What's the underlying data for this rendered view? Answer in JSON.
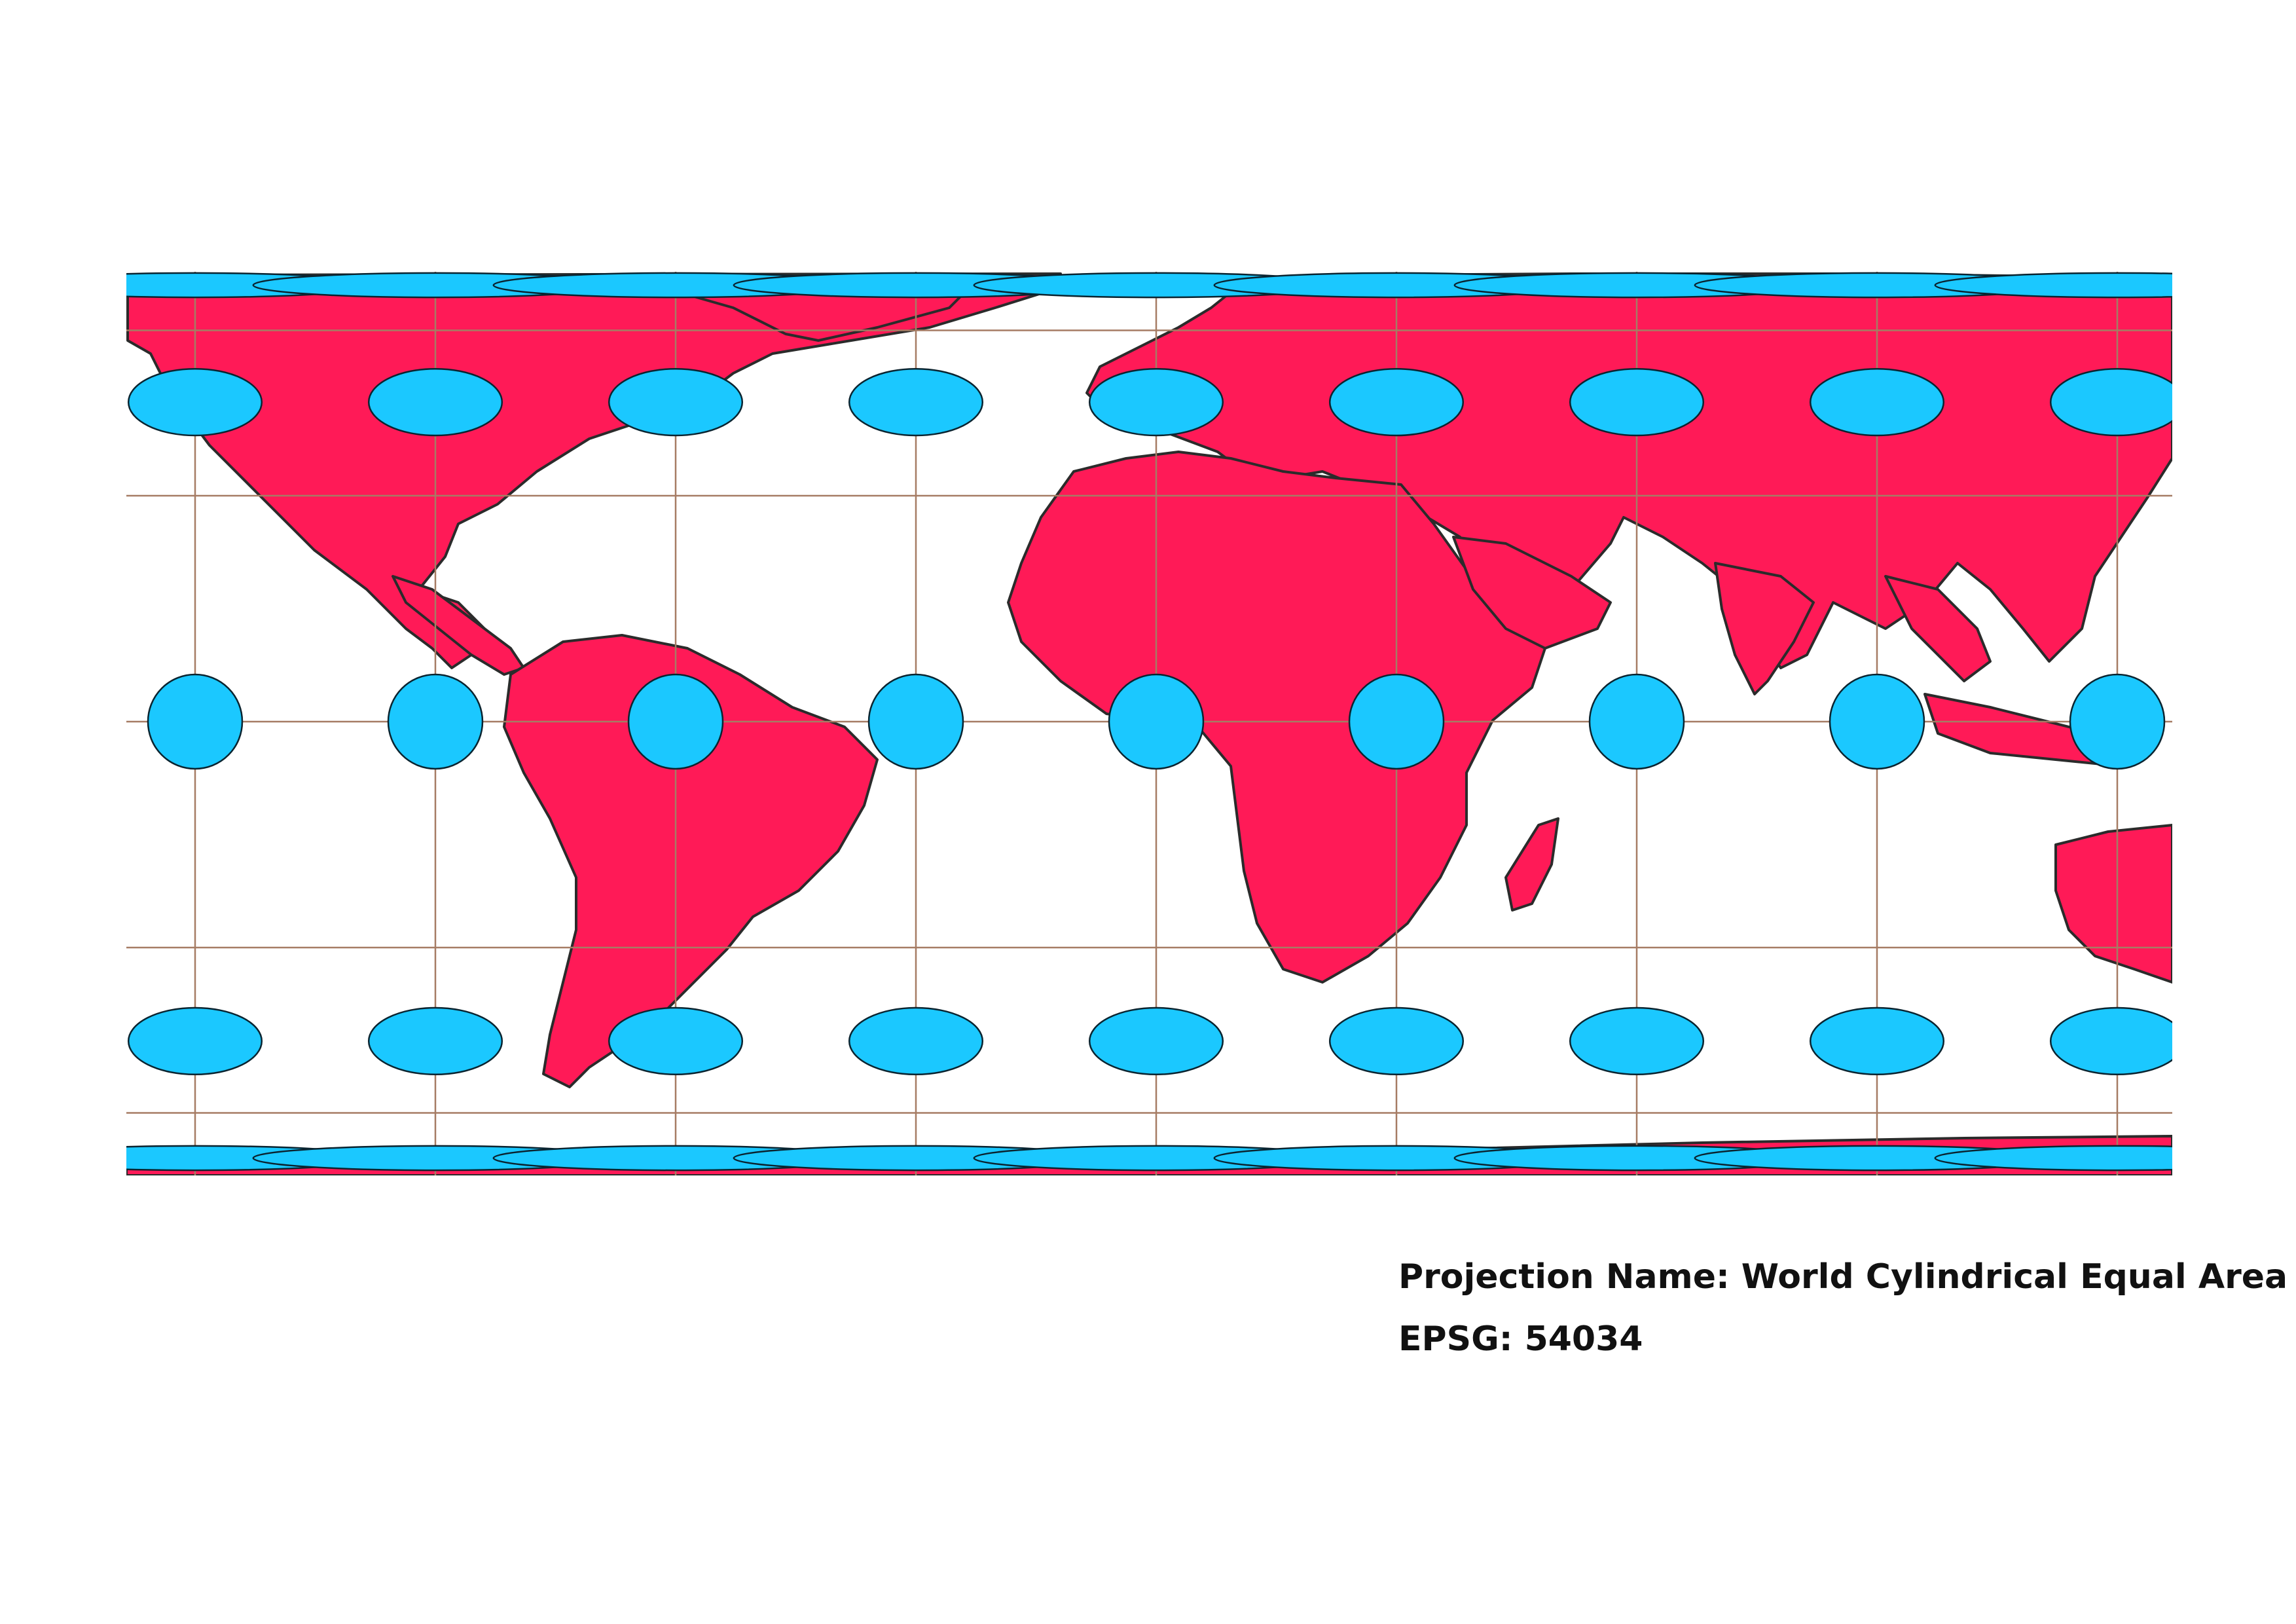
{
  "map": {
    "colors": {
      "background": "#ffffff",
      "land": "#ff1a57",
      "coastline": "#2b2b2b",
      "graticule": "#a67c64",
      "indicatrix_fill": "#1bc8ff",
      "indicatrix_stroke": "#0a2430"
    },
    "projection": "cylindrical-equal-area",
    "graticule": {
      "longitudes": [
        -180,
        -135,
        -90,
        -45,
        0,
        45,
        90,
        135,
        180
      ],
      "latitudes": [
        -60,
        -30,
        0,
        30,
        60
      ]
    },
    "indicatrices": {
      "longitudes": [
        -180,
        -135,
        -90,
        -45,
        0,
        45,
        90,
        135,
        180
      ],
      "latitudes": [
        75,
        45,
        0,
        -45,
        -75
      ]
    }
  },
  "caption": {
    "projection_label": "Projection Name:",
    "projection_value": "World Cylindrical Equal Area",
    "epsg_label": "EPSG:",
    "epsg_value": "54034"
  }
}
